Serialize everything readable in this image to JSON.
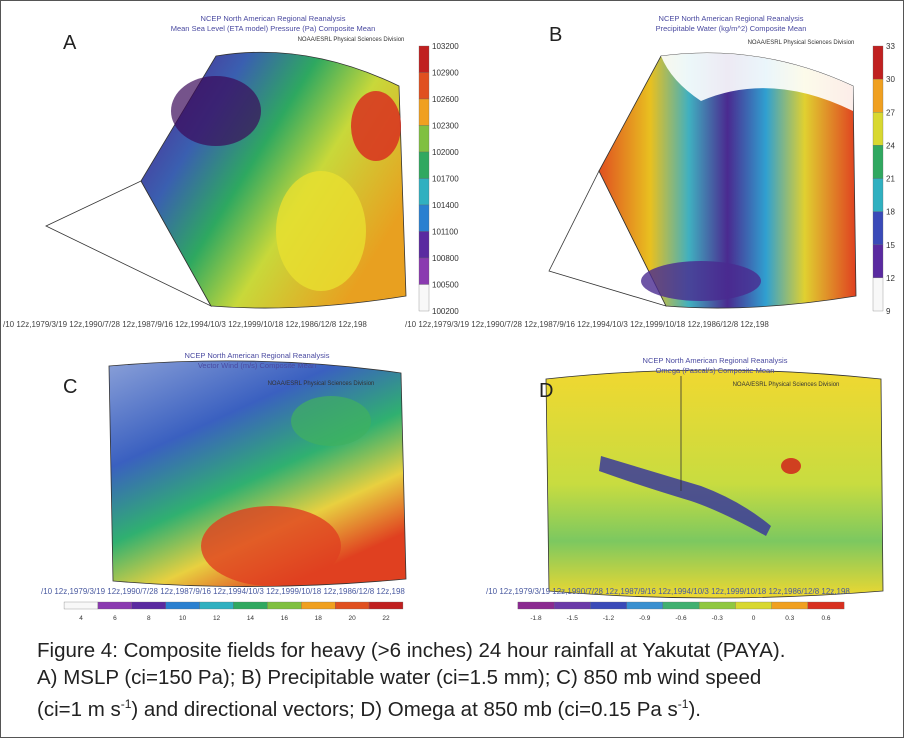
{
  "panels": [
    {
      "letter": "A",
      "title": [
        "NCEP North American Regional Reanalysis",
        "Mean Sea Level (ETA model) Pressure (Pa) Composite Mean"
      ],
      "credit": "NOAA/ESRL Physical Sciences Division",
      "colorbar": [
        103200,
        102900,
        102600,
        102300,
        102000,
        101700,
        101400,
        101100,
        100800,
        100500,
        100200
      ],
      "dates": "/10 12z,1979/3/19 12z,1990/7/28 12z,1987/9/16 12z,1994/10/3 12z,1999/10/18 12z,1986/12/8 12z,198"
    },
    {
      "letter": "B",
      "title": [
        "NCEP North American Regional Reanalysis",
        "Precipitable Water (kg/m^2) Composite Mean"
      ],
      "credit": "NOAA/ESRL Physical Sciences Division",
      "colorbar": [
        33,
        30,
        27,
        24,
        21,
        18,
        15,
        12,
        9
      ],
      "dates": "/10 12z,1979/3/19 12z,1990/7/28 12z,1987/9/16 12z,1994/10/3 12z,1999/10/18 12z,1986/12/8 12z,198"
    },
    {
      "letter": "C",
      "title": [
        "NCEP North American Regional Reanalysis",
        "Vector Wind (m/s) Composite Mean"
      ],
      "credit": "NOAA/ESRL Physical Sciences Division",
      "colorbar": [
        4,
        6,
        8,
        10,
        12,
        14,
        16,
        18,
        20,
        22
      ],
      "dates": "/10 12z,1979/3/19 12z,1990/7/28 12z,1987/9/16 12z,1994/10/3 12z,1999/10/18 12z,1986/12/8 12z,198"
    },
    {
      "letter": "D",
      "title": [
        "NCEP North American Regional Reanalysis",
        "Omega (Pascal/s) Composite Mean"
      ],
      "credit": "NOAA/ESRL Physical Sciences Division",
      "colorbar": [
        -1.8,
        -1.5,
        -1.2,
        -0.9,
        -0.6,
        -0.3,
        0,
        0.3,
        0.6
      ],
      "dates": "/10 12z,1979/3/19 12z,1990/7/28 12z,1987/9/16 12z,1994/10/3 12z,1999/10/18 12z,1986/12/8 12z,198"
    }
  ],
  "caption": {
    "line1": "Figure 4:  Composite fields for heavy (>6 inches) 24 hour rainfall at Yakutat (PAYA).",
    "line2": "A) MSLP (ci=150 Pa);  B) Precipitable water (ci=1.5 mm);  C) 850 mb wind speed",
    "line3": [
      "(ci=1 m s",
      "-1",
      ") and directional vectors;  D) Omega at 850 mb (ci=0.15 Pa s",
      "-1",
      ")."
    ]
  }
}
